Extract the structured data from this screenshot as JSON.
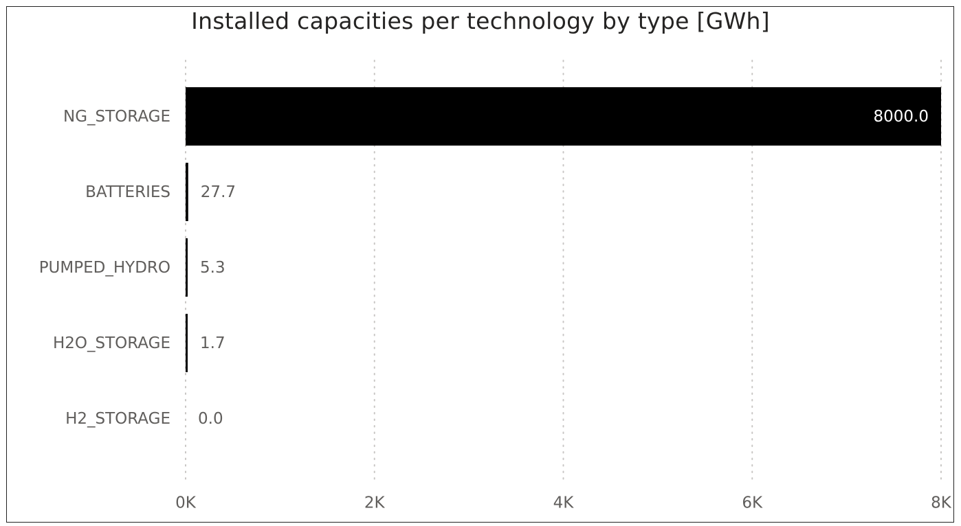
{
  "chart_data": {
    "type": "bar",
    "orientation": "horizontal",
    "title": "Installed capacities per technology by type [GWh]",
    "categories": [
      "NG_STORAGE",
      "BATTERIES",
      "PUMPED_HYDRO",
      "H2O_STORAGE",
      "H2_STORAGE"
    ],
    "values": [
      8000.0,
      27.7,
      5.3,
      1.7,
      0.0
    ],
    "data_labels": [
      "8000.0",
      "27.7",
      "5.3",
      "1.7",
      "0.0"
    ],
    "xlim": [
      0,
      8000
    ],
    "xticks": [
      0,
      2000,
      4000,
      6000,
      8000
    ],
    "xtick_labels": [
      "0K",
      "2K",
      "4K",
      "6K",
      "8K"
    ],
    "xlabel": "",
    "ylabel": "",
    "grid": "vertical-dotted",
    "colors": {
      "bar": "#000000",
      "grid": "#c8c6c4",
      "label": "#605e5c",
      "inside_label": "#ffffff"
    }
  }
}
